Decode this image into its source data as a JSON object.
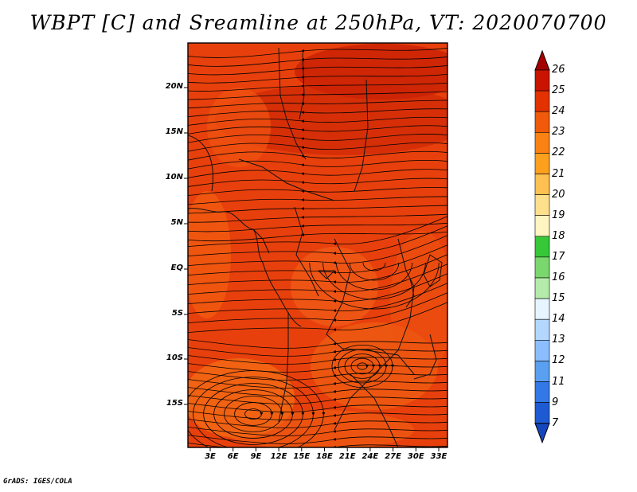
{
  "title": "WBPT [C] and Sreamline at 250hPa, VT: 2020070700",
  "credit": "GrADS: IGES/COLA",
  "lat_labels": [
    "20N",
    "15N",
    "10N",
    "5N",
    "EQ",
    "5S",
    "10S",
    "15S"
  ],
  "lon_labels": [
    "3E",
    "6E",
    "9E",
    "12E",
    "15E",
    "18E",
    "21E",
    "24E",
    "27E",
    "30E",
    "33E"
  ],
  "colorbar": {
    "labels": [
      "26",
      "25",
      "24",
      "23",
      "22",
      "21",
      "20",
      "19",
      "18",
      "17",
      "16",
      "15",
      "14",
      "13",
      "12",
      "11",
      "9",
      "7"
    ],
    "colors": [
      "#a50000",
      "#c81400",
      "#e13200",
      "#f05a0a",
      "#fa8214",
      "#fda01e",
      "#fec050",
      "#fee08c",
      "#fff5c0",
      "#37c837",
      "#7ad76e",
      "#b4ebaa",
      "#e6f5ff",
      "#b4d7ff",
      "#8cbeff",
      "#5aa0f0",
      "#3278e6",
      "#1e5ad2",
      "#1446be"
    ]
  },
  "field": {
    "variable": "WBPT",
    "units": "C",
    "level": "250hPa",
    "valid_time": "2020070700"
  }
}
